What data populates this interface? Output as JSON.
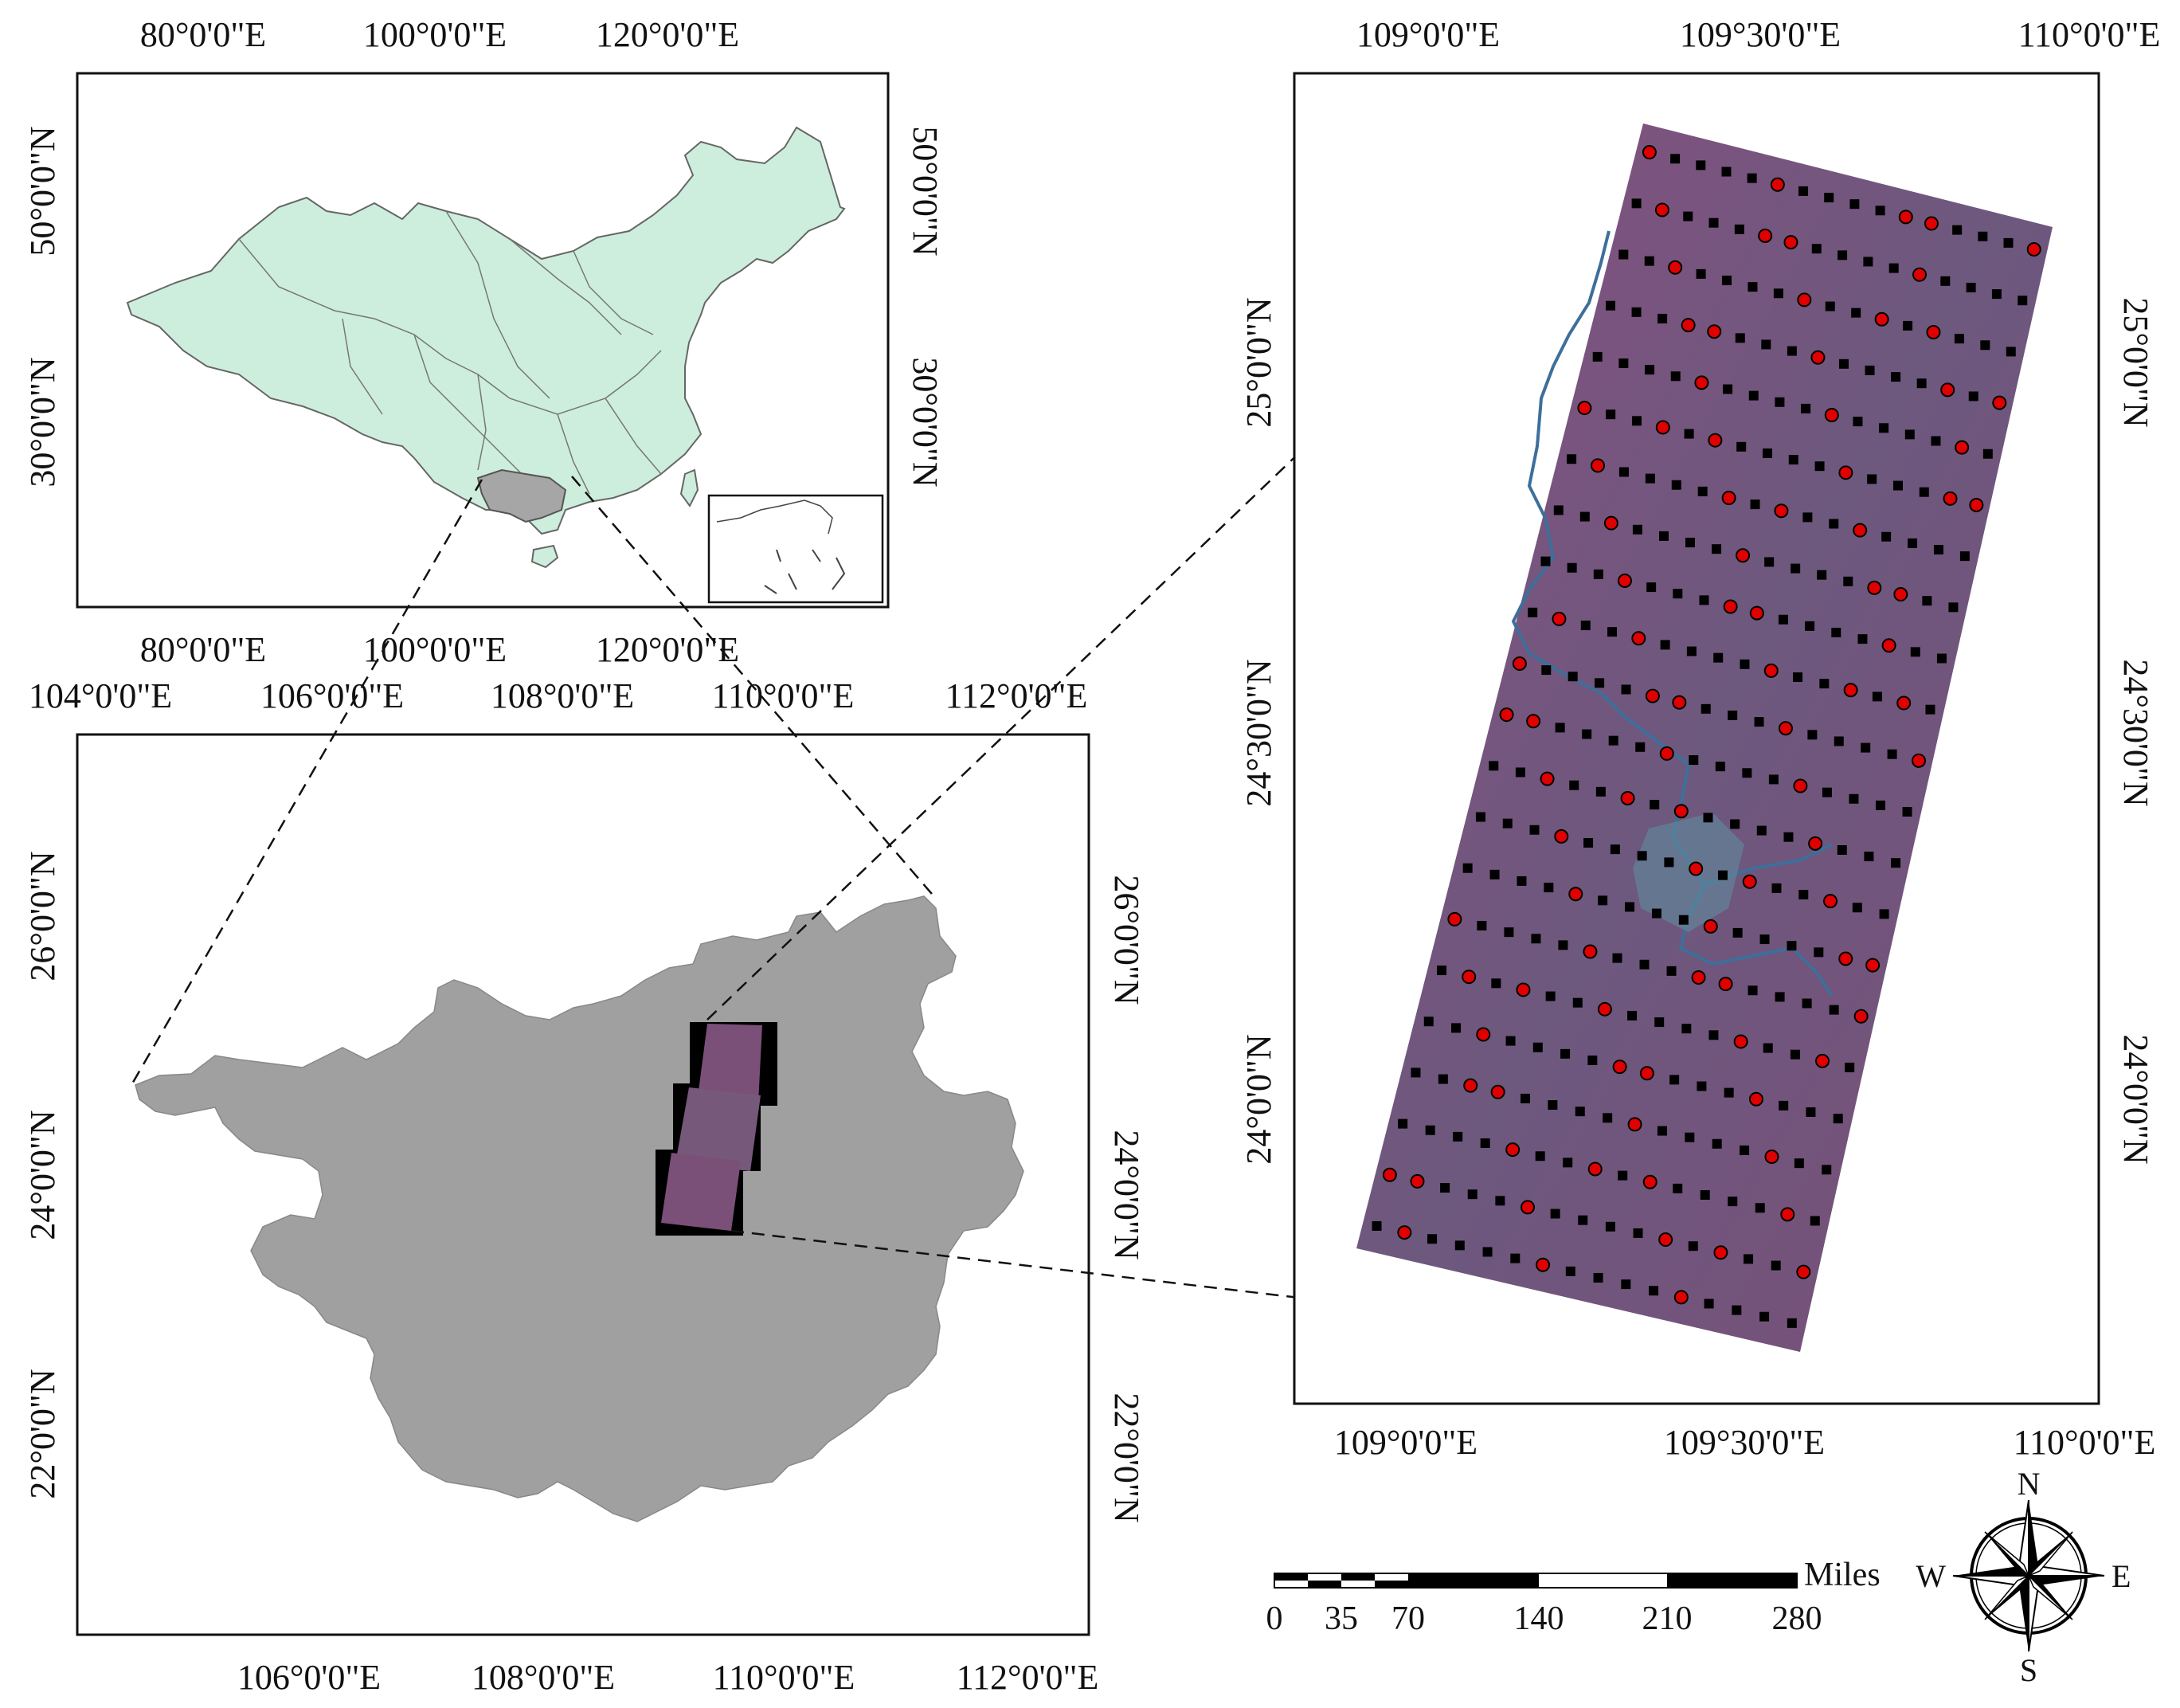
{
  "china_map": {
    "top_ticks": [
      "80°0'0\"E",
      "100°0'0\"E",
      "120°0'0\"E"
    ],
    "bottom_ticks": [
      "80°0'0\"E",
      "100°0'0\"E",
      "120°0'0\"E"
    ],
    "left_ticks": [
      "50°0'0\"N",
      "30°0'0\"N"
    ],
    "right_ticks": [
      "50°0'0\"N",
      "30°0'0\"N"
    ],
    "fill_color": "#cdeedd",
    "highlight_color": "#a6a6a6"
  },
  "guangxi_map": {
    "top_ticks": [
      "104°0'0\"E",
      "106°0'0\"E",
      "108°0'0\"E",
      "110°0'0\"E",
      "112°0'0\"E"
    ],
    "bottom_ticks": [
      "106°0'0\"E",
      "108°0'0\"E",
      "110°0'0\"E",
      "112°0'0\"E"
    ],
    "left_ticks": [
      "26°0'0\"N",
      "24°0'0\"N",
      "22°0'0\"N"
    ],
    "right_ticks": [
      "26°0'0\"N",
      "24°0'0\"N",
      "22°0'0\"N"
    ],
    "fill_color": "#a0a0a0"
  },
  "scene_map": {
    "top_ticks": [
      "109°0'0\"E",
      "109°30'0\"E",
      "110°0'0\"E"
    ],
    "bottom_ticks": [
      "109°0'0\"E",
      "109°30'0\"E",
      "110°0'0\"E"
    ],
    "left_ticks": [
      "25°0'0\"N",
      "24°30'0\"N",
      "24°0'0\"N"
    ],
    "right_ticks": [
      "25°0'0\"N",
      "24°30'0\"N",
      "24°0'0\"N"
    ],
    "image_color": "#7a4f7a",
    "sample_colors": {
      "square": "#000000",
      "circle": "#e00000"
    }
  },
  "scale_bar": {
    "unit": "Miles",
    "labels": [
      "0",
      "35",
      "70",
      "140",
      "210",
      "280"
    ]
  },
  "compass": {
    "n": "N",
    "s": "S",
    "e": "E",
    "w": "W"
  }
}
